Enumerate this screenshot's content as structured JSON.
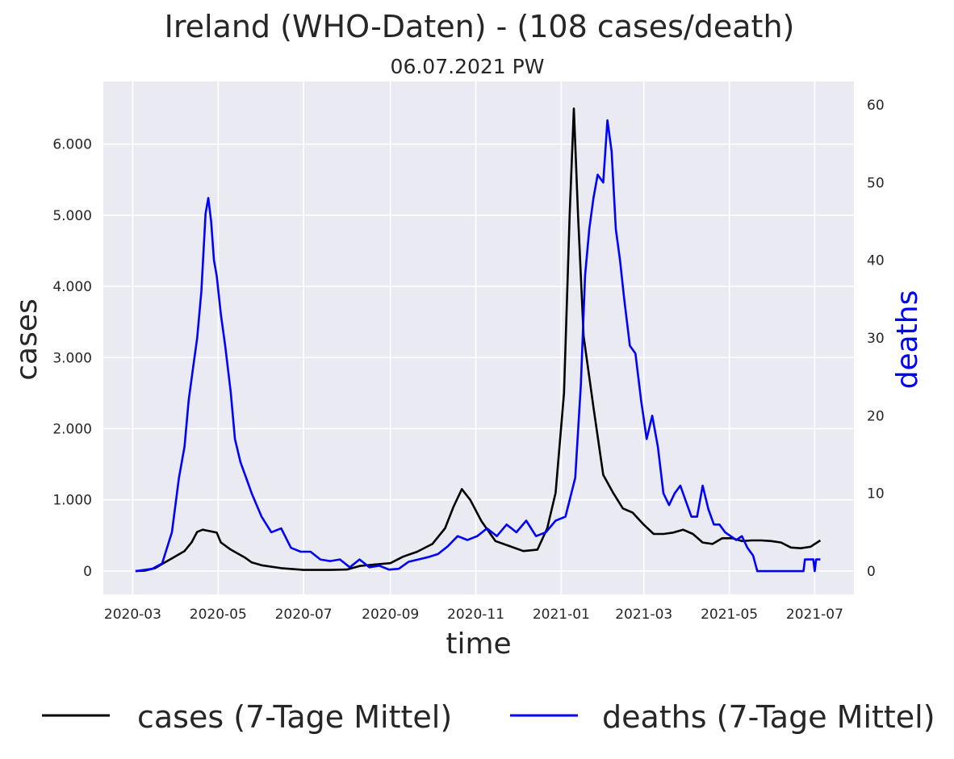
{
  "chart_data": {
    "type": "line",
    "title": "Ireland (WHO-Daten) - (108 cases/death)",
    "subtitle": "06.07.2021 PW",
    "xlabel": "time",
    "ylabel_left": "cases",
    "ylabel_right": "deaths",
    "x_ticks": [
      "2020-03",
      "2020-05",
      "2020-07",
      "2020-09",
      "2020-11",
      "2021-01",
      "2021-03",
      "2021-05",
      "2021-07"
    ],
    "y_left_ticks": [
      0,
      1000,
      2000,
      3000,
      4000,
      5000,
      6000
    ],
    "y_left_tick_labels": [
      "0",
      "1.000",
      "2.000",
      "3.000",
      "4.000",
      "5.000",
      "6.000"
    ],
    "y_right_ticks": [
      0,
      10,
      20,
      30,
      40,
      50,
      60
    ],
    "y_right_tick_labels": [
      "0",
      "10",
      "20",
      "30",
      "40",
      "50",
      "60"
    ],
    "xlim": [
      "2020-02-09",
      "2021-07-29"
    ],
    "ylim_left": [
      -330,
      6880
    ],
    "ylim_right": [
      -3,
      63
    ],
    "grid": true,
    "legend_position": "bottom",
    "colors": {
      "cases": "#000000",
      "deaths": "#0000ff",
      "background": "#eaeaf2",
      "grid": "#ffffff"
    },
    "series": [
      {
        "name": "cases (7-Tage Mittel)",
        "axis": "left",
        "color": "#000000",
        "points": [
          [
            "2020-03-03",
            0
          ],
          [
            "2020-03-10",
            5
          ],
          [
            "2020-03-17",
            40
          ],
          [
            "2020-03-24",
            120
          ],
          [
            "2020-03-31",
            200
          ],
          [
            "2020-04-07",
            280
          ],
          [
            "2020-04-12",
            400
          ],
          [
            "2020-04-16",
            550
          ],
          [
            "2020-04-20",
            580
          ],
          [
            "2020-04-25",
            560
          ],
          [
            "2020-04-30",
            540
          ],
          [
            "2020-05-03",
            400
          ],
          [
            "2020-05-10",
            300
          ],
          [
            "2020-05-20",
            190
          ],
          [
            "2020-05-25",
            120
          ],
          [
            "2020-06-01",
            80
          ],
          [
            "2020-06-15",
            40
          ],
          [
            "2020-07-01",
            15
          ],
          [
            "2020-07-20",
            15
          ],
          [
            "2020-08-01",
            20
          ],
          [
            "2020-08-10",
            70
          ],
          [
            "2020-08-20",
            90
          ],
          [
            "2020-09-01",
            110
          ],
          [
            "2020-09-10",
            200
          ],
          [
            "2020-09-20",
            270
          ],
          [
            "2020-10-01",
            380
          ],
          [
            "2020-10-10",
            600
          ],
          [
            "2020-10-16",
            900
          ],
          [
            "2020-10-22",
            1150
          ],
          [
            "2020-10-28",
            1000
          ],
          [
            "2020-11-05",
            700
          ],
          [
            "2020-11-15",
            420
          ],
          [
            "2020-11-25",
            350
          ],
          [
            "2020-12-05",
            280
          ],
          [
            "2020-12-15",
            300
          ],
          [
            "2020-12-22",
            600
          ],
          [
            "2020-12-28",
            1100
          ],
          [
            "2021-01-03",
            2500
          ],
          [
            "2021-01-07",
            5000
          ],
          [
            "2021-01-10",
            6500
          ],
          [
            "2021-01-13",
            5000
          ],
          [
            "2021-01-17",
            3300
          ],
          [
            "2021-01-24",
            2300
          ],
          [
            "2021-01-31",
            1350
          ],
          [
            "2021-02-07",
            1100
          ],
          [
            "2021-02-14",
            880
          ],
          [
            "2021-02-21",
            820
          ],
          [
            "2021-03-01",
            650
          ],
          [
            "2021-03-08",
            520
          ],
          [
            "2021-03-15",
            520
          ],
          [
            "2021-03-22",
            540
          ],
          [
            "2021-03-29",
            580
          ],
          [
            "2021-04-05",
            520
          ],
          [
            "2021-04-12",
            400
          ],
          [
            "2021-04-19",
            380
          ],
          [
            "2021-04-26",
            460
          ],
          [
            "2021-05-03",
            460
          ],
          [
            "2021-05-10",
            420
          ],
          [
            "2021-05-17",
            430
          ],
          [
            "2021-05-24",
            430
          ],
          [
            "2021-05-31",
            420
          ],
          [
            "2021-06-07",
            400
          ],
          [
            "2021-06-14",
            330
          ],
          [
            "2021-06-21",
            320
          ],
          [
            "2021-06-28",
            340
          ],
          [
            "2021-07-05",
            430
          ]
        ]
      },
      {
        "name": "deaths (7-Tage Mittel)",
        "axis": "right",
        "color": "#0000ff",
        "points": [
          [
            "2020-03-03",
            0
          ],
          [
            "2020-03-15",
            0.3
          ],
          [
            "2020-03-22",
            1
          ],
          [
            "2020-03-29",
            5
          ],
          [
            "2020-04-03",
            12
          ],
          [
            "2020-04-07",
            16
          ],
          [
            "2020-04-10",
            22
          ],
          [
            "2020-04-13",
            26
          ],
          [
            "2020-04-16",
            30
          ],
          [
            "2020-04-19",
            36
          ],
          [
            "2020-04-22",
            46
          ],
          [
            "2020-04-24",
            48
          ],
          [
            "2020-04-26",
            45
          ],
          [
            "2020-04-28",
            40
          ],
          [
            "2020-04-30",
            38
          ],
          [
            "2020-05-03",
            33
          ],
          [
            "2020-05-06",
            29
          ],
          [
            "2020-05-10",
            23
          ],
          [
            "2020-05-13",
            17
          ],
          [
            "2020-05-17",
            14
          ],
          [
            "2020-05-21",
            12
          ],
          [
            "2020-05-25",
            10
          ],
          [
            "2020-06-01",
            7
          ],
          [
            "2020-06-08",
            5
          ],
          [
            "2020-06-15",
            5.5
          ],
          [
            "2020-06-22",
            3
          ],
          [
            "2020-06-29",
            2.5
          ],
          [
            "2020-07-06",
            2.5
          ],
          [
            "2020-07-13",
            1.5
          ],
          [
            "2020-07-20",
            1.3
          ],
          [
            "2020-07-27",
            1.5
          ],
          [
            "2020-08-03",
            0.5
          ],
          [
            "2020-08-10",
            1.5
          ],
          [
            "2020-08-17",
            0.5
          ],
          [
            "2020-08-24",
            0.7
          ],
          [
            "2020-08-31",
            0.2
          ],
          [
            "2020-09-07",
            0.3
          ],
          [
            "2020-09-14",
            1.2
          ],
          [
            "2020-09-21",
            1.5
          ],
          [
            "2020-09-28",
            1.8
          ],
          [
            "2020-10-05",
            2.2
          ],
          [
            "2020-10-12",
            3.2
          ],
          [
            "2020-10-19",
            4.5
          ],
          [
            "2020-10-26",
            4
          ],
          [
            "2020-11-02",
            4.5
          ],
          [
            "2020-11-09",
            5.5
          ],
          [
            "2020-11-16",
            4.5
          ],
          [
            "2020-11-23",
            6
          ],
          [
            "2020-11-30",
            5
          ],
          [
            "2020-12-07",
            6.5
          ],
          [
            "2020-12-14",
            4.5
          ],
          [
            "2020-12-21",
            5
          ],
          [
            "2020-12-28",
            6.5
          ],
          [
            "2021-01-04",
            7
          ],
          [
            "2021-01-11",
            12
          ],
          [
            "2021-01-15",
            24
          ],
          [
            "2021-01-18",
            38
          ],
          [
            "2021-01-21",
            44
          ],
          [
            "2021-01-24",
            48
          ],
          [
            "2021-01-27",
            51
          ],
          [
            "2021-01-31",
            50
          ],
          [
            "2021-02-03",
            58
          ],
          [
            "2021-02-06",
            54
          ],
          [
            "2021-02-09",
            44
          ],
          [
            "2021-02-12",
            40
          ],
          [
            "2021-02-15",
            35
          ],
          [
            "2021-02-19",
            29
          ],
          [
            "2021-02-23",
            28
          ],
          [
            "2021-02-27",
            22
          ],
          [
            "2021-03-03",
            17
          ],
          [
            "2021-03-07",
            20
          ],
          [
            "2021-03-11",
            16
          ],
          [
            "2021-03-15",
            10
          ],
          [
            "2021-03-19",
            8.5
          ],
          [
            "2021-03-23",
            10
          ],
          [
            "2021-03-27",
            11
          ],
          [
            "2021-03-31",
            9
          ],
          [
            "2021-04-04",
            7
          ],
          [
            "2021-04-08",
            7
          ],
          [
            "2021-04-12",
            11
          ],
          [
            "2021-04-16",
            8
          ],
          [
            "2021-04-20",
            6
          ],
          [
            "2021-04-24",
            6
          ],
          [
            "2021-04-28",
            5
          ],
          [
            "2021-05-02",
            4.5
          ],
          [
            "2021-05-06",
            4
          ],
          [
            "2021-05-10",
            4.5
          ],
          [
            "2021-05-14",
            3
          ],
          [
            "2021-05-18",
            2
          ],
          [
            "2021-05-21",
            0
          ],
          [
            "2021-06-01",
            0
          ],
          [
            "2021-06-15",
            0
          ],
          [
            "2021-06-23",
            0
          ],
          [
            "2021-06-24",
            1.5
          ],
          [
            "2021-06-30",
            1.5
          ],
          [
            "2021-07-01",
            0
          ],
          [
            "2021-07-02",
            1.5
          ],
          [
            "2021-07-05",
            1.5
          ]
        ]
      }
    ]
  }
}
